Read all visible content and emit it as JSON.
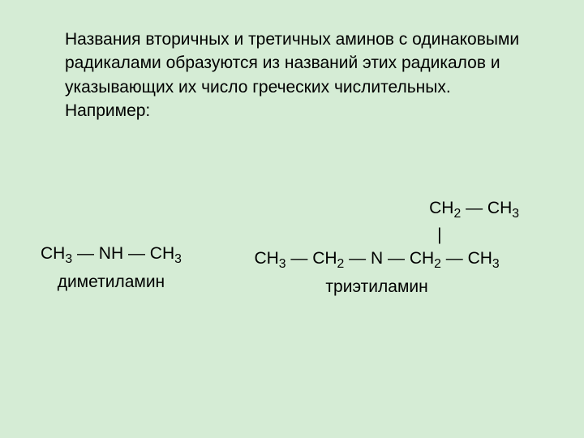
{
  "background_color": "#d5ecd5",
  "text_color": "#000000",
  "fontsize": 21,
  "paragraph": "Названия вторичных и третичных аминов с одинаковыми радикалами образуются из названий этих радикалов и указывающих их число греческих числительных. Например:",
  "left_formula": {
    "structure": "CH₃ ― NH ― CH₃",
    "name": "диметиламин"
  },
  "right_formula": {
    "branch": "CH₂ ― CH₃",
    "bar": "|",
    "main": "CH₃ ― CH₂ ― N ― CH₂ ― CH₃",
    "name": "триэтиламин"
  }
}
